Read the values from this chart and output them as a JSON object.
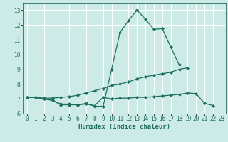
{
  "x": [
    0,
    1,
    2,
    3,
    4,
    5,
    6,
    7,
    8,
    9,
    10,
    11,
    12,
    13,
    14,
    15,
    16,
    17,
    18,
    19,
    20,
    21,
    22,
    23
  ],
  "line1": [
    7.1,
    7.1,
    7.0,
    6.9,
    6.6,
    6.6,
    6.6,
    6.7,
    6.5,
    6.5,
    9.0,
    11.5,
    12.3,
    13.0,
    12.4,
    11.7,
    11.75,
    10.5,
    9.3,
    null,
    null,
    null,
    null,
    null
  ],
  "line2": [
    7.1,
    7.1,
    7.05,
    7.05,
    7.1,
    7.15,
    7.25,
    7.4,
    7.55,
    7.7,
    7.9,
    8.0,
    8.15,
    8.35,
    8.5,
    8.6,
    8.7,
    8.8,
    9.0,
    9.1,
    null,
    null,
    null,
    null
  ],
  "line3": [
    7.1,
    7.1,
    7.0,
    6.9,
    6.65,
    6.65,
    6.6,
    6.65,
    6.55,
    7.1,
    7.0,
    7.05,
    7.05,
    7.1,
    7.1,
    7.15,
    7.2,
    7.25,
    7.3,
    7.4,
    7.35,
    6.7,
    6.55,
    null
  ],
  "xlabel": "Humidex (Indice chaleur)",
  "xlim": [
    -0.5,
    23.5
  ],
  "ylim": [
    6.0,
    13.5
  ],
  "yticks": [
    6,
    7,
    8,
    9,
    10,
    11,
    12,
    13
  ],
  "xticks": [
    0,
    1,
    2,
    3,
    4,
    5,
    6,
    7,
    8,
    9,
    10,
    11,
    12,
    13,
    14,
    15,
    16,
    17,
    18,
    19,
    20,
    21,
    22,
    23
  ],
  "line_color": "#1e6e5e",
  "bg_color": "#cceae6",
  "grid_color": "#ffffff",
  "marker": "D",
  "markersize": 2.0,
  "linewidth": 0.9,
  "title_fontsize": 7,
  "tick_fontsize": 5.5,
  "xlabel_fontsize": 6.5
}
